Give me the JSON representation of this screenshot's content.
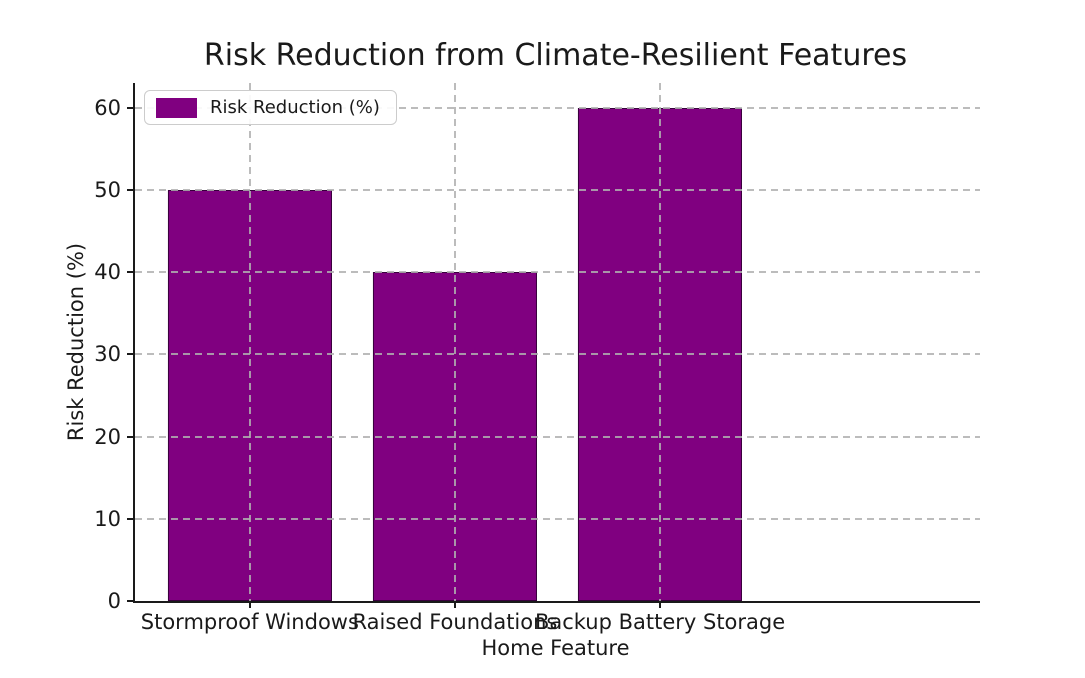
{
  "title": "Risk Reduction from Climate-Resilient Features",
  "legend": {
    "label": "Risk Reduction (%)",
    "swatch_color": "#800080",
    "position": "upper left"
  },
  "axes": {
    "xlabel": "Home Feature",
    "ylabel": "Risk Reduction (%)"
  },
  "colors": {
    "bar": "#800080",
    "bar_edge": "#38003c",
    "grid": "#b0b0b0",
    "text": "#1a1a1a",
    "spine": "#1a1a1a",
    "legend_border": "#cccccc",
    "background": "#ffffff"
  },
  "chart_data": {
    "type": "bar",
    "title": "Risk Reduction from Climate-Resilient Features",
    "categories": [
      "Stormproof Windows",
      "Raised Foundations",
      "Backup Battery Storage"
    ],
    "series": [
      {
        "name": "Risk Reduction (%)",
        "values": [
          50,
          40,
          60
        ]
      }
    ],
    "xlabel": "Home Feature",
    "ylabel": "Risk Reduction (%)",
    "ylim": [
      0,
      63
    ],
    "yticks": [
      0,
      10,
      20,
      30,
      40,
      50,
      60
    ],
    "grid": "on, dashed, drawn above bars",
    "legend_position": "upper left",
    "bar_color": "#800080",
    "bar_width_fraction": 0.8
  }
}
